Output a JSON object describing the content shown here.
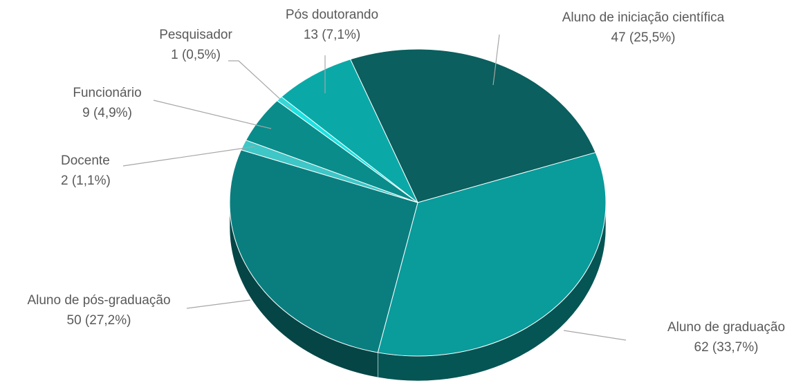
{
  "chart_data": {
    "type": "pie",
    "categories": [
      "Aluno de iniciação científica",
      "Aluno de graduação",
      "Aluno de pós-graduação",
      "Docente",
      "Funcionário",
      "Pesquisador",
      "Pós doutorando"
    ],
    "values": [
      47,
      62,
      50,
      2,
      9,
      1,
      13
    ],
    "value_labels": [
      "47 (25,5%)",
      "62 (33,7%)",
      "50 (27,2%)",
      "2 (1,1%)",
      "9 (4,9%)",
      "1 (0,5%)",
      "13 (7,1%)"
    ],
    "colors": [
      "#0b5f5e",
      "#0a9b9b",
      "#0a7e7f",
      "#3fc6c6",
      "#0a8c8b",
      "#1ae2e2",
      "#0aa9a8"
    ]
  }
}
